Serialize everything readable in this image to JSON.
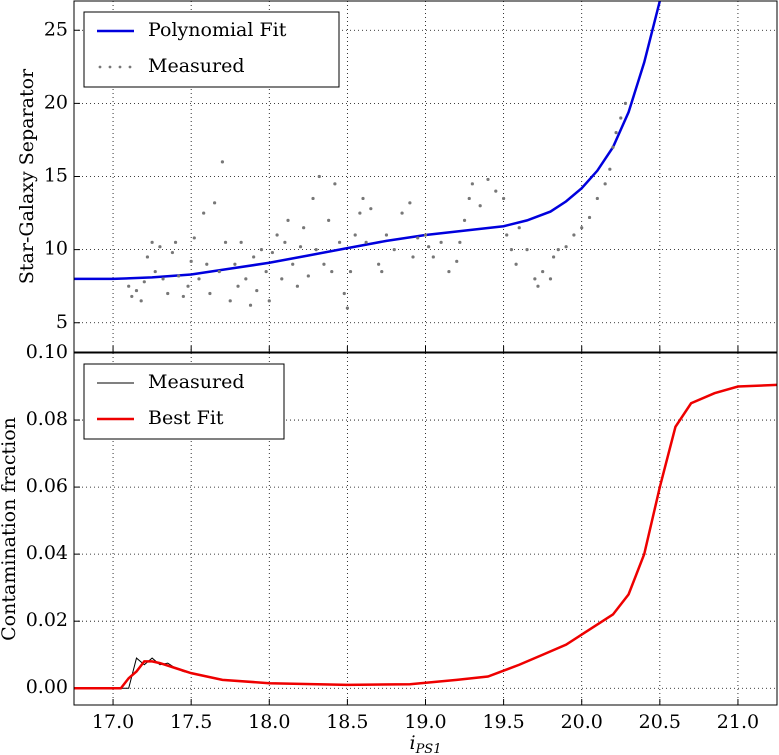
{
  "chart_data": [
    {
      "type": "scatter",
      "y_label": "Star-Galaxy Separator",
      "xlim": [
        16.75,
        21.25
      ],
      "ylim": [
        3,
        27
      ],
      "xticks": [
        17,
        17.5,
        18,
        18.5,
        19,
        19.5,
        20,
        20.5,
        21
      ],
      "yticks": [
        5,
        10,
        15,
        20,
        25
      ],
      "grid": true,
      "legend": "upper left",
      "series": [
        {
          "name": "Polynomial Fit",
          "color": "#0000dd",
          "style": "line",
          "x": [
            16.75,
            17.0,
            17.25,
            17.5,
            17.75,
            18.0,
            18.25,
            18.5,
            18.75,
            19.0,
            19.25,
            19.5,
            19.65,
            19.8,
            19.9,
            20.0,
            20.1,
            20.2,
            20.3,
            20.4,
            20.5
          ],
          "values": [
            8.0,
            8.0,
            8.1,
            8.3,
            8.7,
            9.1,
            9.6,
            10.1,
            10.6,
            11.0,
            11.3,
            11.6,
            12.0,
            12.6,
            13.3,
            14.2,
            15.4,
            17.0,
            19.4,
            22.8,
            27.0
          ]
        },
        {
          "name": "Measured",
          "color": "#777777",
          "style": "points",
          "x": [
            17.1,
            17.12,
            17.15,
            17.18,
            17.2,
            17.22,
            17.25,
            17.27,
            17.3,
            17.32,
            17.35,
            17.38,
            17.4,
            17.42,
            17.45,
            17.48,
            17.5,
            17.52,
            17.55,
            17.58,
            17.6,
            17.62,
            17.65,
            17.68,
            17.7,
            17.72,
            17.75,
            17.78,
            17.8,
            17.82,
            17.85,
            17.88,
            17.9,
            17.92,
            17.95,
            17.98,
            18.0,
            18.02,
            18.05,
            18.08,
            18.1,
            18.12,
            18.15,
            18.18,
            18.2,
            18.22,
            18.25,
            18.28,
            18.3,
            18.32,
            18.35,
            18.38,
            18.4,
            18.42,
            18.45,
            18.48,
            18.5,
            18.52,
            18.55,
            18.58,
            18.6,
            18.62,
            18.65,
            18.7,
            18.72,
            18.75,
            18.8,
            18.85,
            18.9,
            18.92,
            18.95,
            19.0,
            19.02,
            19.05,
            19.1,
            19.15,
            19.2,
            19.22,
            19.25,
            19.28,
            19.3,
            19.35,
            19.4,
            19.45,
            19.5,
            19.52,
            19.55,
            19.58,
            19.6,
            19.65,
            19.7,
            19.72,
            19.75,
            19.8,
            19.82,
            19.85,
            19.9,
            19.95,
            20.0,
            20.05,
            20.1,
            20.15,
            20.18,
            20.2,
            20.22,
            20.25,
            20.28
          ],
          "values": [
            7.5,
            6.8,
            7.2,
            6.5,
            7.8,
            9.5,
            10.5,
            8.5,
            10.2,
            8.0,
            7.0,
            9.8,
            10.5,
            8.2,
            6.8,
            7.5,
            9.2,
            10.8,
            8.0,
            12.5,
            9.0,
            7.0,
            13.2,
            8.5,
            16.0,
            10.5,
            6.5,
            9.0,
            7.5,
            10.5,
            8.0,
            6.2,
            9.5,
            7.2,
            10.0,
            8.5,
            6.5,
            9.8,
            11.0,
            8.0,
            10.5,
            12.0,
            9.0,
            7.5,
            10.2,
            11.5,
            8.2,
            13.5,
            10.0,
            15.0,
            9.0,
            12.0,
            8.5,
            14.5,
            10.5,
            7.0,
            6.0,
            8.5,
            11.0,
            12.5,
            13.5,
            10.5,
            12.8,
            9.0,
            8.5,
            11.0,
            10.0,
            12.5,
            13.2,
            9.5,
            10.8,
            11.0,
            10.2,
            9.5,
            10.5,
            8.5,
            9.2,
            10.5,
            12.0,
            13.5,
            14.5,
            13.0,
            14.8,
            14.0,
            13.5,
            11.0,
            10.0,
            9.0,
            11.5,
            10.0,
            8.0,
            7.5,
            8.5,
            8.0,
            9.5,
            10.0,
            10.2,
            11.0,
            11.5,
            12.2,
            13.5,
            14.5,
            15.5,
            17.0,
            18.0,
            19.0,
            20.0
          ]
        }
      ]
    },
    {
      "type": "line",
      "x_label": "i",
      "x_label_sub": "PS1",
      "y_label": "Contamination fraction",
      "xlim": [
        16.75,
        21.25
      ],
      "ylim": [
        -0.005,
        0.1
      ],
      "xticks": [
        {
          "value": 17,
          "label": "17.0"
        },
        {
          "value": 17.5,
          "label": "17.5"
        },
        {
          "value": 18,
          "label": "18.0"
        },
        {
          "value": 18.5,
          "label": "18.5"
        },
        {
          "value": 19,
          "label": "19.0"
        },
        {
          "value": 19.5,
          "label": "19.5"
        },
        {
          "value": 20,
          "label": "20.0"
        },
        {
          "value": 20.5,
          "label": "20.5"
        },
        {
          "value": 21,
          "label": "21.0"
        }
      ],
      "yticks": [
        {
          "value": 0,
          "label": "0.00"
        },
        {
          "value": 0.02,
          "label": "0.02"
        },
        {
          "value": 0.04,
          "label": "0.04"
        },
        {
          "value": 0.06,
          "label": "0.06"
        },
        {
          "value": 0.08,
          "label": "0.08"
        },
        {
          "value": 0.1,
          "label": "0.10"
        }
      ],
      "grid": true,
      "legend": "upper left",
      "series": [
        {
          "name": "Measured",
          "color": "#000000",
          "style": "thin",
          "x": [
            16.75,
            17.0,
            17.05,
            17.1,
            17.15,
            17.2,
            17.25,
            17.3,
            17.35,
            17.4,
            17.45,
            17.5,
            17.6,
            17.7,
            18.0,
            18.5,
            18.9,
            19.2,
            19.4,
            19.6,
            19.75,
            19.9,
            20.0,
            20.2,
            20.3,
            20.4,
            20.5,
            20.6,
            20.7,
            20.85,
            21.0,
            21.25
          ],
          "values": [
            0,
            0,
            0,
            0,
            0.009,
            0.007,
            0.009,
            0.007,
            0.0075,
            0.006,
            0.005,
            0.0045,
            0.0035,
            0.0025,
            0.0015,
            0.001,
            0.0012,
            0.0025,
            0.0035,
            0.007,
            0.01,
            0.013,
            0.016,
            0.022,
            0.028,
            0.04,
            0.06,
            0.078,
            0.085,
            0.088,
            0.09,
            0.0905
          ]
        },
        {
          "name": "Best Fit",
          "color": "#ee0000",
          "style": "thick",
          "x": [
            16.75,
            17.0,
            17.05,
            17.1,
            17.15,
            17.2,
            17.25,
            17.3,
            17.4,
            17.5,
            17.6,
            17.7,
            18.0,
            18.5,
            18.9,
            19.2,
            19.4,
            19.6,
            19.75,
            19.9,
            20.0,
            20.2,
            20.3,
            20.4,
            20.5,
            20.6,
            20.7,
            20.85,
            21.0,
            21.25
          ],
          "values": [
            0,
            0,
            0,
            0.003,
            0.005,
            0.008,
            0.008,
            0.0075,
            0.006,
            0.0045,
            0.0035,
            0.0025,
            0.0015,
            0.001,
            0.0012,
            0.0025,
            0.0035,
            0.007,
            0.01,
            0.013,
            0.016,
            0.022,
            0.028,
            0.04,
            0.06,
            0.078,
            0.085,
            0.088,
            0.09,
            0.0905
          ]
        }
      ]
    }
  ]
}
